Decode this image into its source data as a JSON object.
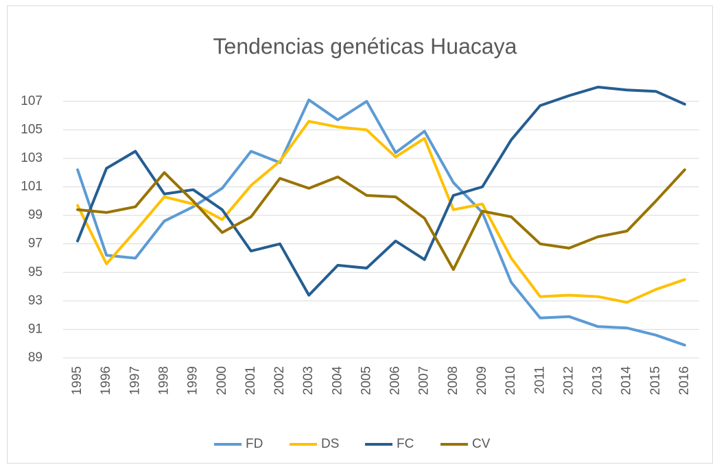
{
  "chart_data": {
    "type": "line",
    "title": "Tendencias genéticas Huacaya",
    "categories": [
      "1995",
      "1996",
      "1997",
      "1998",
      "1999",
      "2000",
      "2001",
      "2002",
      "2003",
      "2004",
      "2005",
      "2006",
      "2007",
      "2008",
      "2009",
      "2010",
      "2011",
      "2012",
      "2013",
      "2014",
      "2015",
      "2016"
    ],
    "series": [
      {
        "name": "FD",
        "color": "#5b9bd5",
        "values": [
          102.2,
          96.2,
          96.0,
          98.6,
          99.6,
          100.9,
          103.5,
          102.7,
          107.1,
          105.7,
          107.0,
          103.4,
          104.9,
          101.3,
          99.2,
          94.3,
          91.8,
          91.9,
          91.2,
          91.1,
          90.6,
          89.9
        ]
      },
      {
        "name": "DS",
        "color": "#ffc000",
        "values": [
          99.7,
          95.6,
          97.9,
          100.3,
          99.8,
          98.7,
          101.1,
          102.8,
          105.6,
          105.2,
          105.0,
          103.1,
          104.4,
          99.4,
          99.8,
          96.0,
          93.3,
          93.4,
          93.3,
          92.9,
          93.8,
          94.5
        ]
      },
      {
        "name": "FC",
        "color": "#255e91",
        "values": [
          97.2,
          102.3,
          103.5,
          100.5,
          100.8,
          99.4,
          96.5,
          97.0,
          93.4,
          95.5,
          95.3,
          97.2,
          95.9,
          100.4,
          101.0,
          104.3,
          106.7,
          107.4,
          108.0,
          107.8,
          107.7,
          106.8
        ]
      },
      {
        "name": "CV",
        "color": "#997300",
        "values": [
          99.4,
          99.2,
          99.6,
          102.0,
          100.0,
          97.8,
          98.9,
          101.6,
          100.9,
          101.7,
          100.4,
          100.3,
          98.8,
          95.2,
          99.3,
          98.9,
          97.0,
          96.7,
          97.5,
          97.9,
          100.0,
          102.2
        ]
      }
    ],
    "ylim": [
      89,
      108
    ],
    "yticks": [
      89,
      91,
      93,
      95,
      97,
      99,
      101,
      103,
      105,
      107
    ],
    "grid": true,
    "legend": "bottom"
  }
}
